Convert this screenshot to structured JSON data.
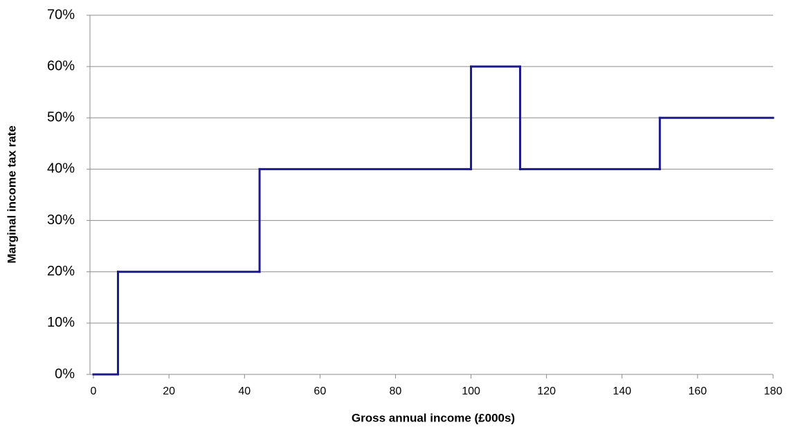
{
  "chart_data": {
    "type": "step",
    "x_label": "Gross annual income (£000s)",
    "y_label": "Marginal income tax rate",
    "x": [
      0,
      6.5,
      44,
      100,
      113,
      150
    ],
    "values": [
      0,
      20,
      40,
      60,
      40,
      50
    ],
    "color": "#1c1a8a",
    "xlim": [
      0,
      180
    ],
    "xticks": [
      0,
      20,
      40,
      60,
      80,
      100,
      120,
      140,
      160,
      180
    ],
    "ylim": [
      0,
      70
    ],
    "yticks": [
      {
        "value": 0,
        "label": "0%"
      },
      {
        "value": 10,
        "label": "10%"
      },
      {
        "value": 20,
        "label": "20%"
      },
      {
        "value": 30,
        "label": "30%"
      },
      {
        "value": 40,
        "label": "40%"
      },
      {
        "value": 50,
        "label": "50%"
      },
      {
        "value": 60,
        "label": "60%"
      },
      {
        "value": 70,
        "label": "70%"
      }
    ],
    "grid": true
  }
}
